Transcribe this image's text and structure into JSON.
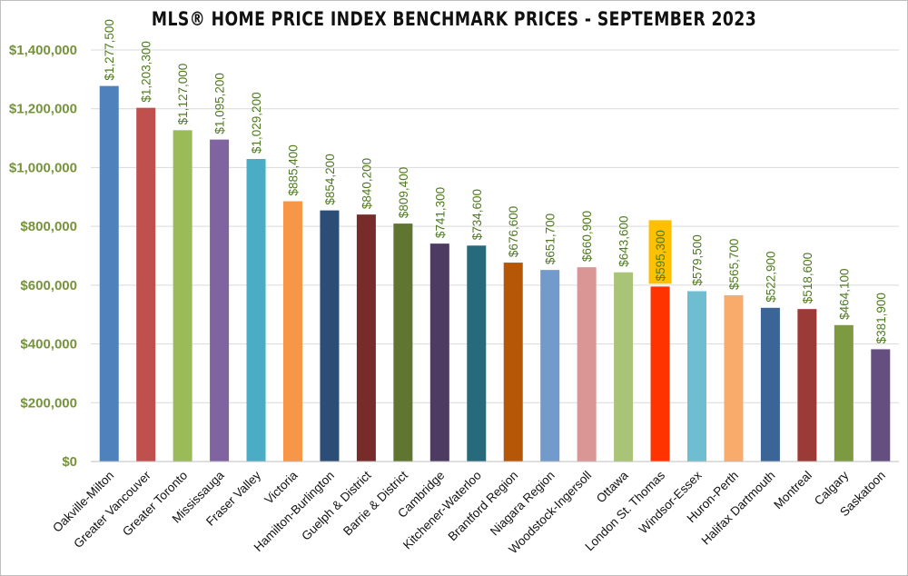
{
  "chart_data": {
    "type": "bar",
    "title": "MLS® HOME PRICE INDEX BENCHMARK PRICES - SEPTEMBER 2023",
    "xlabel": "",
    "ylabel": "",
    "ylim": [
      0,
      1400000
    ],
    "y_ticks": [
      0,
      200000,
      400000,
      600000,
      800000,
      1000000,
      1200000,
      1400000
    ],
    "y_tick_labels": [
      "$0",
      "$200,000",
      "$400,000",
      "$600,000",
      "$800,000",
      "$1,000,000",
      "$1,200,000",
      "$1,400,000"
    ],
    "grid": true,
    "legend": "none",
    "categories": [
      "Oakville-Milton",
      "Greater Vancouver",
      "Greater Toronto",
      "Mississauga",
      "Fraser Valley",
      "Victoria",
      "Hamilton-Burlington",
      "Guelph & District",
      "Barrie & District",
      "Cambridge",
      "Kitchener-Waterloo",
      "Brantford Region",
      "Niagara Region",
      "Woodstock-Ingersoll",
      "Ottawa",
      "London St. Thomas",
      "Windsor-Essex",
      "Huron-Perth",
      "Halifax Dartmouth",
      "Montreal",
      "Calgary",
      "Saskatoon"
    ],
    "values": [
      1277500,
      1203300,
      1127000,
      1095200,
      1029200,
      885400,
      854200,
      840200,
      809400,
      741300,
      734600,
      676600,
      651700,
      660900,
      643600,
      595300,
      579500,
      565700,
      522900,
      518600,
      464100,
      381900
    ],
    "data_labels": [
      "$1,277,500",
      "$1,203,300",
      "$1,127,000",
      "$1,095,200",
      "$1,029,200",
      "$885,400",
      "$854,200",
      "$840,200",
      "$809,400",
      "$741,300",
      "$734,600",
      "$676,600",
      "$651,700",
      "$660,900",
      "$643,600",
      "$595,300",
      "$579,500",
      "$565,700",
      "$522,900",
      "$518,600",
      "$464,100",
      "$381,900"
    ],
    "colors": [
      "#4f81bd",
      "#c0504d",
      "#9bbb59",
      "#8064a2",
      "#4bacc6",
      "#f79646",
      "#2c4d75",
      "#772c2a",
      "#5f7530",
      "#4d3b62",
      "#276a7c",
      "#b65708",
      "#729aca",
      "#d99694",
      "#a9c476",
      "#ff3300",
      "#6fbdd1",
      "#f9ab6b",
      "#3a6596",
      "#9c3a37",
      "#7d9a41",
      "#654f80"
    ],
    "highlight": {
      "category": "London St. Thomas",
      "label_background": "#ffc000"
    },
    "label_color": "#4f7a21",
    "axis_label_color": "#76933c"
  }
}
